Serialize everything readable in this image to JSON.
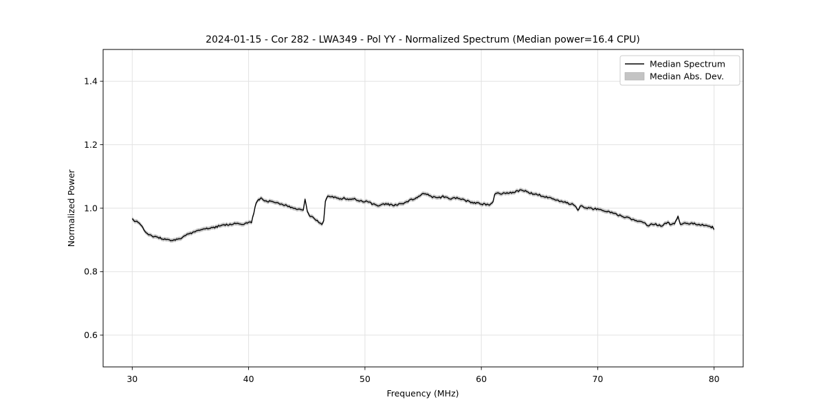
{
  "chart_data": {
    "type": "line",
    "title": "2024-01-15 - Cor 282 - LWA349 - Pol YY - Normalized Spectrum (Median power=16.4 CPU)",
    "xlabel": "Frequency (MHz)",
    "ylabel": "Normalized Power",
    "xlim": [
      27.5,
      82.5
    ],
    "ylim": [
      0.5,
      1.5
    ],
    "xticks": [
      30,
      40,
      50,
      60,
      70,
      80
    ],
    "xtick_labels": [
      "30",
      "40",
      "50",
      "60",
      "70",
      "80"
    ],
    "yticks": [
      0.6,
      0.8,
      1.0,
      1.2,
      1.4
    ],
    "ytick_labels": [
      "0.6",
      "0.8",
      "1.0",
      "1.2",
      "1.4"
    ],
    "grid": true,
    "background_color": "#ffffff",
    "band_color": "#c4c4c4",
    "noise_amplitude": 0.0028,
    "mad_halfwidth": 0.0065,
    "legend": {
      "position": "upper right",
      "entries": [
        {
          "label": "Median Spectrum",
          "type": "line",
          "color": "#000000"
        },
        {
          "label": "Median Abs. Dev.",
          "type": "patch",
          "color": "#c4c4c4"
        }
      ]
    },
    "series": [
      {
        "name": "Median Spectrum",
        "color": "#000000",
        "points": [
          [
            30.0,
            0.966
          ],
          [
            30.2,
            0.96
          ],
          [
            30.4,
            0.957
          ],
          [
            30.6,
            0.952
          ],
          [
            30.8,
            0.945
          ],
          [
            31.0,
            0.93
          ],
          [
            31.3,
            0.92
          ],
          [
            31.6,
            0.913
          ],
          [
            32.0,
            0.909
          ],
          [
            32.4,
            0.906
          ],
          [
            32.8,
            0.903
          ],
          [
            33.2,
            0.9
          ],
          [
            33.6,
            0.899
          ],
          [
            34.0,
            0.902
          ],
          [
            34.2,
            0.906
          ],
          [
            34.4,
            0.913
          ],
          [
            34.7,
            0.916
          ],
          [
            35.0,
            0.92
          ],
          [
            35.4,
            0.926
          ],
          [
            35.8,
            0.931
          ],
          [
            36.2,
            0.934
          ],
          [
            36.6,
            0.937
          ],
          [
            37.0,
            0.938
          ],
          [
            37.4,
            0.943
          ],
          [
            37.8,
            0.947
          ],
          [
            38.2,
            0.949
          ],
          [
            38.6,
            0.947
          ],
          [
            39.0,
            0.954
          ],
          [
            39.3,
            0.949
          ],
          [
            39.6,
            0.951
          ],
          [
            40.0,
            0.953
          ],
          [
            40.25,
            0.956
          ],
          [
            40.45,
            0.985
          ],
          [
            40.65,
            1.018
          ],
          [
            40.85,
            1.028
          ],
          [
            41.1,
            1.03
          ],
          [
            41.4,
            1.025
          ],
          [
            41.7,
            1.02
          ],
          [
            42.0,
            1.024
          ],
          [
            42.4,
            1.018
          ],
          [
            42.8,
            1.013
          ],
          [
            43.2,
            1.01
          ],
          [
            43.6,
            1.003
          ],
          [
            44.0,
            0.999
          ],
          [
            44.4,
            0.996
          ],
          [
            44.7,
            0.991
          ],
          [
            44.85,
            1.03
          ],
          [
            45.05,
            0.988
          ],
          [
            45.3,
            0.975
          ],
          [
            45.6,
            0.968
          ],
          [
            45.9,
            0.962
          ],
          [
            46.1,
            0.953
          ],
          [
            46.3,
            0.948
          ],
          [
            46.45,
            0.962
          ],
          [
            46.6,
            1.022
          ],
          [
            46.8,
            1.04
          ],
          [
            47.1,
            1.037
          ],
          [
            47.4,
            1.033
          ],
          [
            47.8,
            1.03
          ],
          [
            48.2,
            1.031
          ],
          [
            48.6,
            1.028
          ],
          [
            49.0,
            1.03
          ],
          [
            49.4,
            1.024
          ],
          [
            49.8,
            1.022
          ],
          [
            50.2,
            1.021
          ],
          [
            50.6,
            1.014
          ],
          [
            51.0,
            1.008
          ],
          [
            51.4,
            1.01
          ],
          [
            51.8,
            1.013
          ],
          [
            52.2,
            1.011
          ],
          [
            52.6,
            1.01
          ],
          [
            53.0,
            1.013
          ],
          [
            53.4,
            1.017
          ],
          [
            53.8,
            1.024
          ],
          [
            54.2,
            1.03
          ],
          [
            54.6,
            1.037
          ],
          [
            55.0,
            1.044
          ],
          [
            55.2,
            1.048
          ],
          [
            55.5,
            1.039
          ],
          [
            55.9,
            1.035
          ],
          [
            56.3,
            1.032
          ],
          [
            56.7,
            1.037
          ],
          [
            57.1,
            1.033
          ],
          [
            57.5,
            1.03
          ],
          [
            57.9,
            1.032
          ],
          [
            58.3,
            1.028
          ],
          [
            58.7,
            1.023
          ],
          [
            59.1,
            1.018
          ],
          [
            59.5,
            1.016
          ],
          [
            59.9,
            1.014
          ],
          [
            60.3,
            1.012
          ],
          [
            60.7,
            1.01
          ],
          [
            61.0,
            1.018
          ],
          [
            61.15,
            1.045
          ],
          [
            61.5,
            1.047
          ],
          [
            61.9,
            1.046
          ],
          [
            62.3,
            1.048
          ],
          [
            62.7,
            1.05
          ],
          [
            63.1,
            1.053
          ],
          [
            63.4,
            1.057
          ],
          [
            63.7,
            1.055
          ],
          [
            64.0,
            1.05
          ],
          [
            64.4,
            1.046
          ],
          [
            64.8,
            1.043
          ],
          [
            65.2,
            1.039
          ],
          [
            65.6,
            1.034
          ],
          [
            66.0,
            1.03
          ],
          [
            66.4,
            1.026
          ],
          [
            66.8,
            1.022
          ],
          [
            67.2,
            1.018
          ],
          [
            67.6,
            1.014
          ],
          [
            67.9,
            1.011
          ],
          [
            68.1,
            1.008
          ],
          [
            68.3,
            0.993
          ],
          [
            68.5,
            1.006
          ],
          [
            68.9,
            1.002
          ],
          [
            69.3,
            0.999
          ],
          [
            69.7,
            0.998
          ],
          [
            70.1,
            0.997
          ],
          [
            70.5,
            0.993
          ],
          [
            70.9,
            0.989
          ],
          [
            71.3,
            0.984
          ],
          [
            71.7,
            0.978
          ],
          [
            72.1,
            0.975
          ],
          [
            72.5,
            0.971
          ],
          [
            72.9,
            0.966
          ],
          [
            73.3,
            0.961
          ],
          [
            73.7,
            0.957
          ],
          [
            74.0,
            0.953
          ],
          [
            74.3,
            0.944
          ],
          [
            74.7,
            0.951
          ],
          [
            75.1,
            0.948
          ],
          [
            75.5,
            0.944
          ],
          [
            76.0,
            0.955
          ],
          [
            76.3,
            0.948
          ],
          [
            76.6,
            0.952
          ],
          [
            76.9,
            0.974
          ],
          [
            77.1,
            0.951
          ],
          [
            77.5,
            0.953
          ],
          [
            78.0,
            0.952
          ],
          [
            78.4,
            0.95
          ],
          [
            78.8,
            0.948
          ],
          [
            79.2,
            0.947
          ],
          [
            79.6,
            0.943
          ],
          [
            79.85,
            0.94
          ],
          [
            80.0,
            0.933
          ]
        ]
      }
    ]
  }
}
